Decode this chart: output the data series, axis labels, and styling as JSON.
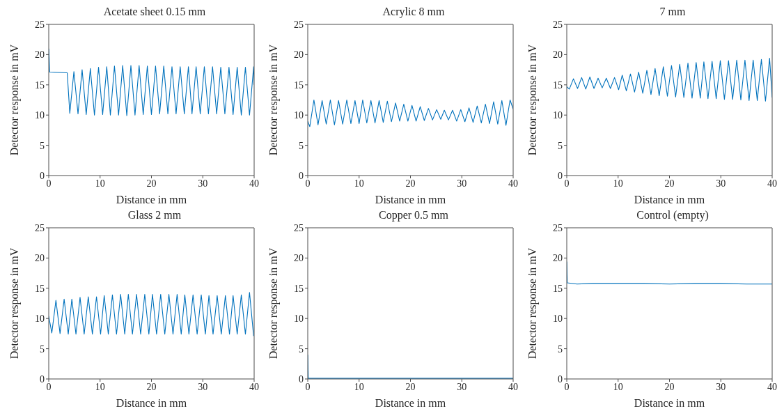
{
  "chart_data": [
    {
      "type": "line",
      "title": "Acetate sheet 0.15 mm",
      "xlabel": "Distance in mm",
      "ylabel": "Detector response in mV",
      "color": "#0072bd",
      "xlim": [
        0,
        40
      ],
      "ylim": [
        0,
        25
      ],
      "xticks": [
        0,
        10,
        20,
        30,
        40
      ],
      "yticks": [
        0,
        5,
        10,
        15,
        20,
        25
      ],
      "x": [
        0,
        0.2,
        3.6,
        4.1,
        4.9,
        5.7,
        6.5,
        7.3,
        8.1,
        8.9,
        9.7,
        10.5,
        11.3,
        12.0,
        12.8,
        13.6,
        14.4,
        15.2,
        16.0,
        16.8,
        17.6,
        18.4,
        19.2,
        20.0,
        20.8,
        21.6,
        22.4,
        23.2,
        24.0,
        24.8,
        25.6,
        26.4,
        27.2,
        27.9,
        28.7,
        29.5,
        30.3,
        31.1,
        31.9,
        32.7,
        33.5,
        34.3,
        35.1,
        35.9,
        36.7,
        37.5,
        38.3,
        39.1,
        39.9,
        40
      ],
      "values": [
        21.0,
        17.1,
        17.0,
        10.3,
        17.2,
        10.2,
        17.5,
        10.1,
        17.7,
        10.0,
        17.9,
        10.1,
        18.0,
        10.0,
        18.1,
        10.0,
        18.2,
        9.9,
        18.2,
        10.0,
        18.2,
        10.1,
        18.1,
        10.1,
        18.1,
        10.2,
        18.1,
        10.2,
        18.0,
        10.2,
        18.0,
        10.2,
        18.0,
        10.2,
        18.0,
        10.2,
        18.0,
        10.2,
        18.0,
        10.2,
        17.9,
        10.2,
        17.9,
        10.1,
        17.9,
        10.0,
        17.9,
        10.0,
        18.0,
        15.0
      ]
    },
    {
      "type": "line",
      "title": "Acrylic 8 mm",
      "xlabel": "Distance in mm",
      "ylabel": "Detector response in mV",
      "color": "#0072bd",
      "xlim": [
        0,
        40
      ],
      "ylim": [
        0,
        25
      ],
      "xticks": [
        0,
        10,
        20,
        30,
        40
      ],
      "yticks": [
        0,
        5,
        10,
        15,
        20,
        25
      ],
      "x": [
        0,
        0.4,
        1.2,
        2.0,
        2.8,
        3.6,
        4.4,
        5.2,
        6.0,
        6.8,
        7.6,
        8.4,
        9.2,
        10.0,
        10.7,
        11.5,
        12.3,
        13.1,
        13.9,
        14.7,
        15.5,
        16.3,
        17.1,
        17.9,
        18.7,
        19.5,
        20.3,
        21.1,
        21.9,
        22.7,
        23.5,
        24.3,
        25.1,
        25.9,
        26.6,
        27.4,
        28.2,
        29.0,
        29.8,
        30.6,
        31.4,
        32.2,
        33.0,
        33.8,
        34.6,
        35.4,
        36.2,
        37.0,
        37.8,
        38.6,
        39.4,
        40
      ],
      "values": [
        9.0,
        8.1,
        12.5,
        8.4,
        12.4,
        8.5,
        12.5,
        8.4,
        12.4,
        8.5,
        12.5,
        8.6,
        12.4,
        8.6,
        12.5,
        8.7,
        12.4,
        8.7,
        12.4,
        8.8,
        12.3,
        8.9,
        12.0,
        9.0,
        11.8,
        9.0,
        11.6,
        9.0,
        11.4,
        9.1,
        11.1,
        9.2,
        10.9,
        9.3,
        10.8,
        9.2,
        10.8,
        9.0,
        10.9,
        8.9,
        11.2,
        8.8,
        11.5,
        8.7,
        11.8,
        8.6,
        12.2,
        8.5,
        12.4,
        8.3,
        12.5,
        11.0
      ]
    },
    {
      "type": "line",
      "title": "7 mm",
      "xlabel": "Distance in mm",
      "ylabel": "Detector response in mV",
      "color": "#0072bd",
      "xlim": [
        0,
        40
      ],
      "ylim": [
        0,
        25
      ],
      "xticks": [
        0,
        10,
        20,
        30,
        40
      ],
      "yticks": [
        0,
        5,
        10,
        15,
        20,
        25
      ],
      "x": [
        0,
        0.5,
        1.3,
        2.1,
        2.9,
        3.7,
        4.5,
        5.3,
        6.1,
        6.9,
        7.7,
        8.5,
        9.3,
        10.1,
        10.8,
        11.6,
        12.4,
        13.2,
        14.0,
        14.8,
        15.6,
        16.4,
        17.2,
        18.0,
        18.8,
        19.6,
        20.4,
        21.2,
        22.0,
        22.8,
        23.6,
        24.4,
        25.2,
        26.0,
        26.7,
        27.5,
        28.3,
        29.1,
        29.9,
        30.7,
        31.5,
        32.3,
        33.1,
        33.9,
        34.7,
        35.5,
        36.3,
        37.1,
        37.9,
        38.7,
        39.5,
        40
      ],
      "values": [
        14.7,
        14.3,
        16.0,
        14.4,
        16.2,
        14.3,
        16.3,
        14.4,
        16.1,
        14.5,
        16.1,
        14.4,
        16.2,
        14.2,
        16.6,
        14.0,
        16.8,
        13.8,
        17.1,
        13.6,
        17.4,
        13.4,
        17.7,
        13.2,
        18.0,
        13.1,
        18.2,
        13.0,
        18.4,
        12.9,
        18.6,
        12.8,
        18.7,
        12.8,
        18.8,
        12.7,
        18.9,
        12.7,
        19.0,
        12.6,
        19.0,
        12.6,
        19.1,
        12.5,
        19.1,
        12.4,
        19.1,
        12.4,
        19.2,
        12.3,
        19.4,
        12.9
      ]
    },
    {
      "type": "line",
      "title": "Glass 2 mm",
      "xlabel": "Distance in mm",
      "ylabel": "Detector response in mV",
      "color": "#0072bd",
      "xlim": [
        0,
        40
      ],
      "ylim": [
        0,
        25
      ],
      "xticks": [
        0,
        10,
        20,
        30,
        40
      ],
      "yticks": [
        0,
        5,
        10,
        15,
        20,
        25
      ],
      "x": [
        0,
        0.6,
        1.4,
        2.2,
        3.0,
        3.8,
        4.5,
        5.3,
        6.1,
        6.9,
        7.7,
        8.5,
        9.3,
        10.1,
        10.8,
        11.6,
        12.4,
        13.2,
        14.0,
        14.8,
        15.5,
        16.3,
        17.1,
        17.9,
        18.7,
        19.5,
        20.2,
        21.0,
        21.8,
        22.6,
        23.4,
        24.2,
        25.0,
        25.8,
        26.5,
        27.3,
        28.1,
        28.9,
        29.7,
        30.5,
        31.2,
        32.0,
        32.8,
        33.6,
        34.4,
        35.2,
        35.9,
        36.7,
        37.5,
        38.3,
        39.1,
        39.9
      ],
      "values": [
        10.4,
        7.6,
        13.0,
        7.5,
        13.2,
        7.4,
        13.2,
        7.4,
        13.5,
        7.4,
        13.6,
        7.4,
        13.6,
        7.4,
        13.8,
        7.4,
        13.9,
        7.4,
        14.0,
        7.4,
        14.0,
        7.4,
        14.0,
        7.4,
        14.0,
        7.4,
        14.0,
        7.4,
        14.0,
        7.4,
        14.0,
        7.4,
        14.0,
        7.4,
        13.9,
        7.4,
        13.9,
        7.4,
        13.9,
        7.4,
        13.8,
        7.4,
        13.8,
        7.4,
        13.8,
        7.4,
        13.8,
        7.4,
        13.9,
        7.4,
        14.3,
        7.1
      ]
    },
    {
      "type": "line",
      "title": "Copper 0.5 mm",
      "xlabel": "Distance in mm",
      "ylabel": "Detector response in mV",
      "color": "#0072bd",
      "xlim": [
        0,
        40
      ],
      "ylim": [
        0,
        25
      ],
      "xticks": [
        0,
        10,
        20,
        30,
        40
      ],
      "yticks": [
        0,
        5,
        10,
        15,
        20,
        25
      ],
      "x": [
        0,
        0.1,
        10,
        20,
        30,
        40
      ],
      "values": [
        4.0,
        0.1,
        0.1,
        0.1,
        0.1,
        0.1
      ]
    },
    {
      "type": "line",
      "title": "Control (empty)",
      "xlabel": "Distance in mm",
      "ylabel": "Detector response in mV",
      "color": "#0072bd",
      "xlim": [
        0,
        40
      ],
      "ylim": [
        0,
        25
      ],
      "xticks": [
        0,
        10,
        20,
        30,
        40
      ],
      "yticks": [
        0,
        5,
        10,
        15,
        20,
        25
      ],
      "x": [
        0,
        0.1,
        2,
        5,
        10,
        15,
        20,
        25,
        30,
        35,
        40
      ],
      "values": [
        19.4,
        15.9,
        15.7,
        15.8,
        15.8,
        15.8,
        15.7,
        15.8,
        15.8,
        15.7,
        15.7
      ]
    }
  ]
}
